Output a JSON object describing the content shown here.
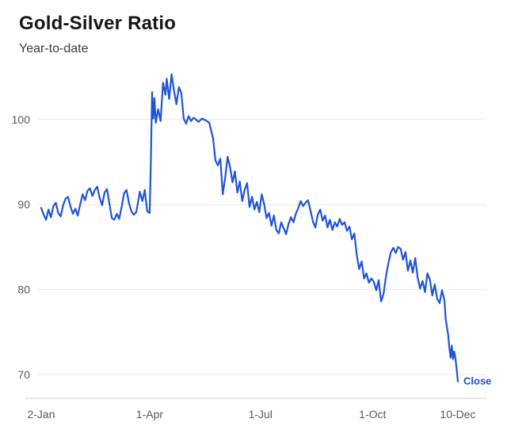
{
  "chart_data": {
    "type": "line",
    "title": "Gold-Silver Ratio",
    "subtitle": "Year-to-date",
    "xlabel": "",
    "ylabel": "",
    "x_unit": "day-of-year",
    "xlim": [
      2,
      344
    ],
    "ylim": [
      67.2,
      106.5
    ],
    "grid": "horizontal",
    "legend": false,
    "yticks": [
      70,
      80,
      90,
      100
    ],
    "xticks": {
      "days": [
        2,
        91,
        182,
        274,
        344
      ],
      "labels": [
        "2-Jan",
        "1-Apr",
        "1-Jul",
        "1-Oct",
        "10-Dec"
      ]
    },
    "annotation": {
      "label": "Close",
      "value": 69.2
    },
    "colors": {
      "line": "#1e55d6",
      "grid": "#e8e8e8",
      "axis": "#cfcfcf",
      "tick_text": "#595959",
      "title": "#161616",
      "subtitle": "#3d3d3d",
      "annotation": "#1e55d6"
    },
    "series": [
      {
        "name": "gold-silver-ratio",
        "x": [
          2,
          4,
          6,
          8,
          10,
          12,
          14,
          16,
          18,
          20,
          22,
          24,
          26,
          28,
          30,
          32,
          34,
          36,
          38,
          40,
          42,
          44,
          46,
          48,
          50,
          52,
          54,
          56,
          58,
          60,
          62,
          64,
          66,
          68,
          70,
          72,
          74,
          76,
          78,
          80,
          83,
          85,
          87,
          89,
          91,
          92,
          93,
          94,
          95,
          96,
          98,
          100,
          102,
          104,
          105,
          107,
          109,
          111,
          113,
          115,
          117,
          119,
          121,
          123,
          125,
          127,
          129,
          131,
          134,
          137,
          140,
          143,
          145,
          147,
          149,
          151,
          153,
          155,
          157,
          159,
          161,
          163,
          165,
          167,
          169,
          171,
          173,
          175,
          177,
          179,
          181,
          183,
          185,
          187,
          189,
          191,
          193,
          195,
          197,
          199,
          201,
          203,
          205,
          207,
          209,
          211,
          213,
          215,
          217,
          219,
          221,
          223,
          225,
          227,
          229,
          231,
          233,
          235,
          237,
          239,
          241,
          243,
          245,
          247,
          249,
          251,
          253,
          255,
          257,
          259,
          261,
          263,
          265,
          267,
          269,
          271,
          273,
          275,
          277,
          279,
          281,
          283,
          285,
          287,
          289,
          291,
          293,
          295,
          297,
          299,
          301,
          303,
          305,
          307,
          309,
          311,
          313,
          315,
          317,
          319,
          321,
          323,
          325,
          327,
          329,
          331,
          333,
          334,
          336,
          337,
          338,
          339,
          340,
          341,
          342,
          343,
          344
        ],
        "y": [
          89.6,
          88.8,
          88.2,
          89.4,
          88.5,
          89.8,
          90.2,
          89.0,
          88.6,
          89.9,
          90.7,
          90.9,
          89.8,
          88.9,
          89.5,
          88.7,
          90.0,
          91.2,
          90.5,
          91.6,
          91.9,
          91.0,
          91.7,
          92.1,
          90.8,
          89.9,
          91.4,
          91.8,
          90.1,
          88.4,
          88.2,
          88.9,
          88.3,
          89.7,
          91.3,
          91.7,
          90.2,
          89.2,
          88.8,
          89.1,
          91.5,
          90.4,
          91.7,
          89.2,
          89.0,
          95.0,
          103.2,
          100.1,
          102.5,
          99.6,
          101.2,
          99.8,
          104.3,
          102.9,
          104.8,
          102.4,
          105.3,
          103.4,
          101.8,
          103.8,
          103.1,
          100.1,
          99.5,
          100.4,
          99.8,
          100.2,
          100.0,
          99.7,
          100.1,
          99.9,
          99.6,
          97.8,
          95.2,
          94.6,
          95.4,
          91.2,
          93.1,
          95.6,
          94.4,
          92.6,
          93.9,
          91.4,
          92.7,
          90.4,
          91.7,
          92.5,
          89.7,
          90.9,
          89.4,
          90.3,
          89.1,
          91.2,
          90.0,
          88.4,
          89.0,
          87.5,
          88.7,
          87.0,
          86.6,
          87.9,
          87.2,
          86.5,
          87.7,
          88.5,
          87.9,
          88.9,
          89.6,
          90.4,
          89.8,
          90.2,
          90.5,
          89.3,
          88.0,
          87.3,
          88.8,
          89.4,
          88.1,
          88.7,
          87.3,
          88.2,
          87.0,
          87.9,
          87.4,
          88.3,
          87.6,
          87.9,
          86.9,
          87.4,
          85.9,
          86.6,
          84.1,
          82.4,
          83.3,
          81.3,
          81.9,
          80.8,
          81.3,
          80.9,
          79.9,
          81.1,
          78.6,
          79.5,
          81.6,
          83.1,
          84.4,
          84.9,
          84.3,
          85.0,
          84.8,
          83.5,
          84.4,
          82.2,
          83.4,
          82.0,
          83.7,
          81.4,
          80.1,
          81.0,
          79.7,
          81.9,
          81.2,
          79.3,
          80.6,
          78.9,
          78.4,
          79.9,
          78.7,
          76.5,
          74.7,
          73.2,
          72.0,
          73.4,
          71.8,
          72.7,
          71.9,
          70.6,
          69.2
        ]
      }
    ]
  }
}
